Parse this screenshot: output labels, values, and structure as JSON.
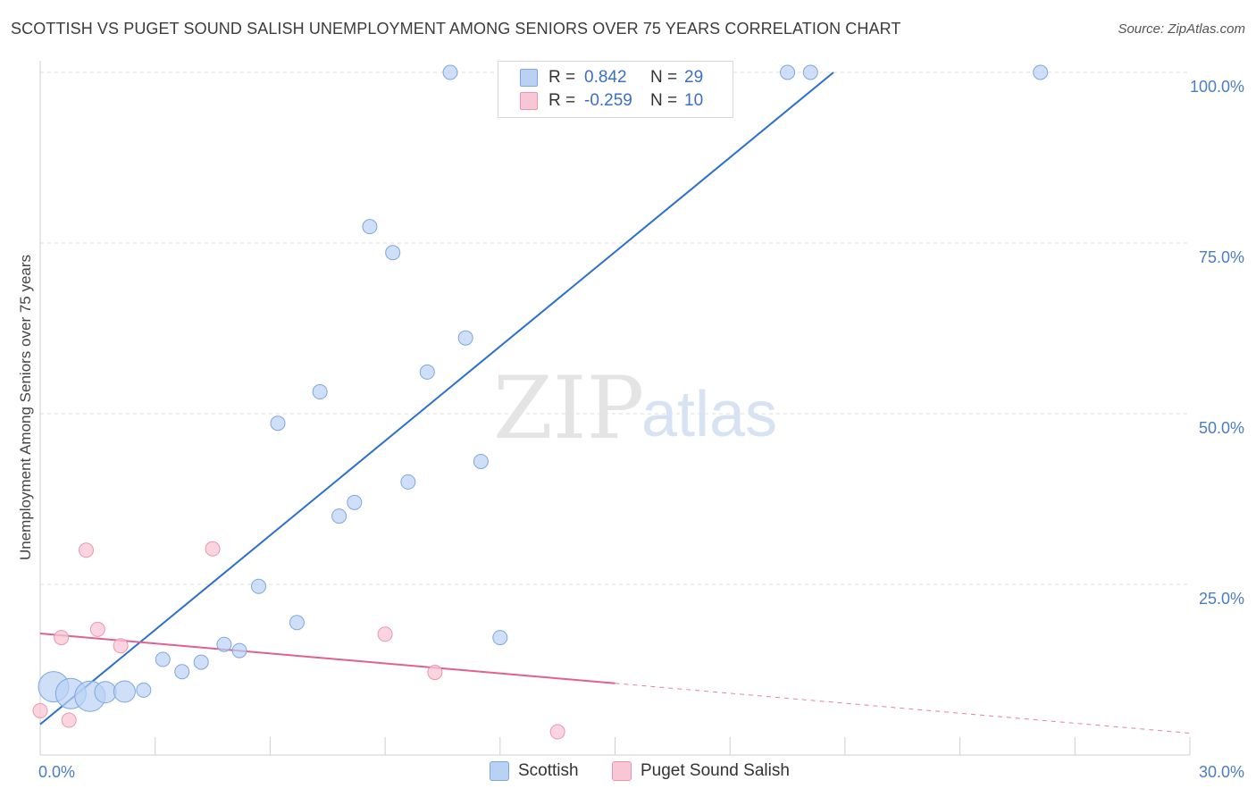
{
  "title": "SCOTTISH VS PUGET SOUND SALISH UNEMPLOYMENT AMONG SENIORS OVER 75 YEARS CORRELATION CHART",
  "source": "Source: ZipAtlas.com",
  "watermark": {
    "zip": "ZIP",
    "atlas": "atlas"
  },
  "colors": {
    "scottish_fill": "#b9d2f3",
    "scottish_stroke": "#7ea6e0",
    "scottish_line": "#2a6fcf",
    "salish_fill": "#f8c6d4",
    "salish_stroke": "#eb96b1",
    "salish_line": "#e0608e",
    "tick_label": "#4a7cc7"
  },
  "legend": {
    "rows": [
      {
        "r_label": "R =",
        "r_value": "0.842",
        "n_label": "N =",
        "n_value": "29"
      },
      {
        "r_label": "R =",
        "r_value": "-0.259",
        "n_label": "N =",
        "n_value": "10"
      }
    ]
  },
  "bottom_legend": [
    "Scottish",
    "Puget Sound Salish"
  ],
  "chart_data": {
    "type": "scatter",
    "title": "SCOTTISH VS PUGET SOUND SALISH UNEMPLOYMENT AMONG SENIORS OVER 75 YEARS CORRELATION CHART",
    "xlabel": "",
    "ylabel": "Unemployment Among Seniors over 75 years",
    "xlim": [
      0,
      30
    ],
    "ylim": [
      0,
      100
    ],
    "x_tick_labels": [
      "0.0%",
      "30.0%"
    ],
    "y_tick_values": [
      25,
      50,
      75,
      100
    ],
    "y_tick_labels": [
      "25.0%",
      "50.0%",
      "75.0%",
      "100.0%"
    ],
    "grid": "horizontal dashed",
    "legend_position": "top-center",
    "series": [
      {
        "name": "Scottish",
        "r": 0.842,
        "n": 29,
        "points": [
          {
            "x": 0.35,
            "y": 10.0,
            "size": 3
          },
          {
            "x": 0.8,
            "y": 9.0,
            "size": 3
          },
          {
            "x": 1.3,
            "y": 8.6,
            "size": 3
          },
          {
            "x": 1.7,
            "y": 9.2,
            "size": 2
          },
          {
            "x": 2.2,
            "y": 9.3,
            "size": 2
          },
          {
            "x": 2.7,
            "y": 9.5,
            "size": 1
          },
          {
            "x": 3.2,
            "y": 14.0,
            "size": 1
          },
          {
            "x": 3.7,
            "y": 12.2,
            "size": 1
          },
          {
            "x": 4.2,
            "y": 13.6,
            "size": 1
          },
          {
            "x": 4.8,
            "y": 16.2,
            "size": 1
          },
          {
            "x": 5.2,
            "y": 15.3,
            "size": 1
          },
          {
            "x": 5.7,
            "y": 24.7,
            "size": 1
          },
          {
            "x": 6.2,
            "y": 48.6,
            "size": 1
          },
          {
            "x": 6.7,
            "y": 19.4,
            "size": 1
          },
          {
            "x": 7.3,
            "y": 53.2,
            "size": 1
          },
          {
            "x": 7.8,
            "y": 35.0,
            "size": 1
          },
          {
            "x": 8.2,
            "y": 37.0,
            "size": 1
          },
          {
            "x": 8.6,
            "y": 77.4,
            "size": 1
          },
          {
            "x": 9.2,
            "y": 73.6,
            "size": 1
          },
          {
            "x": 9.6,
            "y": 40.0,
            "size": 1
          },
          {
            "x": 10.1,
            "y": 56.1,
            "size": 1
          },
          {
            "x": 10.7,
            "y": 100.0,
            "size": 1
          },
          {
            "x": 11.1,
            "y": 61.1,
            "size": 1
          },
          {
            "x": 11.5,
            "y": 43.0,
            "size": 1
          },
          {
            "x": 12.0,
            "y": 17.2,
            "size": 1
          },
          {
            "x": 13.9,
            "y": 100.0,
            "size": 1
          },
          {
            "x": 19.5,
            "y": 100.0,
            "size": 1
          },
          {
            "x": 20.1,
            "y": 100.0,
            "size": 1
          },
          {
            "x": 26.1,
            "y": 100.0,
            "size": 1
          }
        ],
        "trend": {
          "x0": 0.0,
          "y0": 4.5,
          "x1": 20.7,
          "y1": 100.0
        }
      },
      {
        "name": "Puget Sound Salish",
        "r": -0.259,
        "n": 10,
        "points": [
          {
            "x": 0.0,
            "y": 6.5,
            "size": 1
          },
          {
            "x": 0.55,
            "y": 17.2,
            "size": 1
          },
          {
            "x": 0.75,
            "y": 5.1,
            "size": 1
          },
          {
            "x": 1.2,
            "y": 30.0,
            "size": 1
          },
          {
            "x": 1.5,
            "y": 18.4,
            "size": 1
          },
          {
            "x": 2.1,
            "y": 16.0,
            "size": 1
          },
          {
            "x": 4.5,
            "y": 30.2,
            "size": 1
          },
          {
            "x": 9.0,
            "y": 17.7,
            "size": 1
          },
          {
            "x": 10.3,
            "y": 12.1,
            "size": 1
          },
          {
            "x": 13.5,
            "y": 3.4,
            "size": 1
          }
        ],
        "trend": {
          "x0": 0.0,
          "y0": 17.8,
          "x1": 15.0,
          "y1": 10.5,
          "dash_to_x": 30.0,
          "dash_to_y": 3.2
        }
      }
    ]
  }
}
